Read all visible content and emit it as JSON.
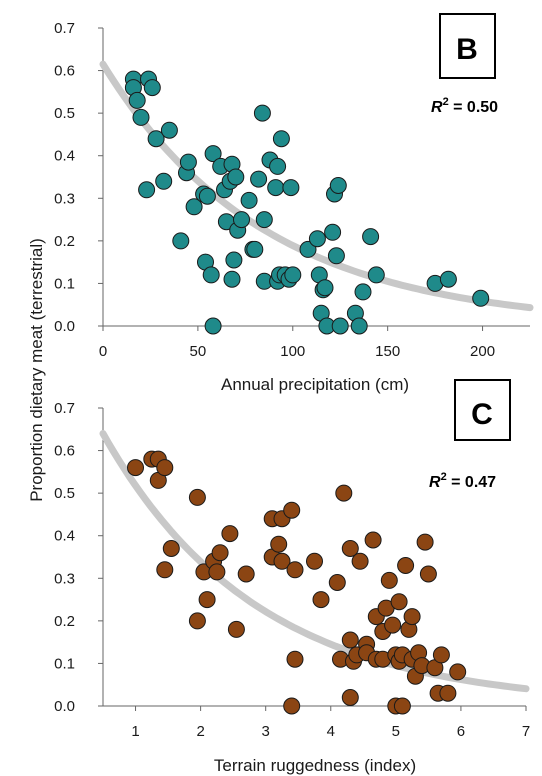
{
  "ylabel": "Proportion dietary meat (terrestrial)",
  "colors": {
    "teal": "#1f8a8a",
    "brown": "#8b4513",
    "fit_line": "#c8c8c8",
    "axis": "#666666"
  },
  "chart_data": [
    {
      "panel": "B",
      "type": "scatter",
      "xlabel": "Annual precipitation (cm)",
      "ylabel": "Proportion dietary meat (terrestrial)",
      "xlim": [
        0,
        225
      ],
      "ylim": [
        0,
        0.7
      ],
      "xticks": [
        "0",
        "50",
        "100",
        "150",
        "200"
      ],
      "yticks": [
        "0.0",
        "0.1",
        "0.2",
        "0.3",
        "0.4",
        "0.5",
        "0.6",
        "0.7"
      ],
      "r2_label": "= 0.50",
      "marker_color": "#1f8a8a",
      "fit": {
        "type": "exponential",
        "a": 0.615,
        "b": 0.0118
      },
      "points": [
        [
          16,
          0.58
        ],
        [
          16,
          0.56
        ],
        [
          18,
          0.53
        ],
        [
          20,
          0.49
        ],
        [
          23,
          0.32
        ],
        [
          24,
          0.58
        ],
        [
          26,
          0.56
        ],
        [
          28,
          0.44
        ],
        [
          32,
          0.34
        ],
        [
          35,
          0.46
        ],
        [
          41,
          0.2
        ],
        [
          44,
          0.36
        ],
        [
          45,
          0.385
        ],
        [
          48,
          0.28
        ],
        [
          53,
          0.31
        ],
        [
          54,
          0.15
        ],
        [
          55,
          0.305
        ],
        [
          57,
          0.12
        ],
        [
          58,
          0.0
        ],
        [
          58,
          0.405
        ],
        [
          62,
          0.375
        ],
        [
          64,
          0.32
        ],
        [
          65,
          0.245
        ],
        [
          67,
          0.34
        ],
        [
          68,
          0.38
        ],
        [
          68,
          0.11
        ],
        [
          69,
          0.155
        ],
        [
          70,
          0.35
        ],
        [
          71,
          0.225
        ],
        [
          73,
          0.25
        ],
        [
          77,
          0.295
        ],
        [
          79,
          0.18
        ],
        [
          80,
          0.18
        ],
        [
          82,
          0.345
        ],
        [
          84,
          0.5
        ],
        [
          85,
          0.25
        ],
        [
          85,
          0.105
        ],
        [
          88,
          0.39
        ],
        [
          91,
          0.325
        ],
        [
          92,
          0.375
        ],
        [
          92,
          0.105
        ],
        [
          93,
          0.12
        ],
        [
          94,
          0.44
        ],
        [
          96,
          0.12
        ],
        [
          98,
          0.11
        ],
        [
          99,
          0.325
        ],
        [
          100,
          0.12
        ],
        [
          108,
          0.18
        ],
        [
          113,
          0.205
        ],
        [
          114,
          0.12
        ],
        [
          115,
          0.03
        ],
        [
          116,
          0.085
        ],
        [
          117,
          0.09
        ],
        [
          118,
          0.0
        ],
        [
          121,
          0.22
        ],
        [
          122,
          0.31
        ],
        [
          123,
          0.165
        ],
        [
          124,
          0.33
        ],
        [
          125,
          0.0
        ],
        [
          133,
          0.03
        ],
        [
          135,
          0.0
        ],
        [
          137,
          0.08
        ],
        [
          141,
          0.21
        ],
        [
          144,
          0.12
        ],
        [
          175,
          0.1
        ],
        [
          182,
          0.11
        ],
        [
          199,
          0.065
        ]
      ]
    },
    {
      "panel": "C",
      "type": "scatter",
      "xlabel": "Terrain ruggedness (index)",
      "ylabel": "Proportion dietary meat (terrestrial)",
      "xlim": [
        0.5,
        7
      ],
      "ylim": [
        0,
        0.7
      ],
      "xticks": [
        "1",
        "2",
        "3",
        "4",
        "5",
        "6",
        "7"
      ],
      "yticks": [
        "0.0",
        "0.1",
        "0.2",
        "0.3",
        "0.4",
        "0.5",
        "0.6",
        "0.7"
      ],
      "r2_label": "= 0.47",
      "marker_color": "#8b4513",
      "fit": {
        "type": "exponential",
        "a": 0.64,
        "b": 0.424
      },
      "points": [
        [
          1.0,
          0.56
        ],
        [
          1.25,
          0.58
        ],
        [
          1.35,
          0.58
        ],
        [
          1.35,
          0.53
        ],
        [
          1.45,
          0.56
        ],
        [
          1.45,
          0.32
        ],
        [
          1.55,
          0.37
        ],
        [
          1.95,
          0.49
        ],
        [
          1.95,
          0.2
        ],
        [
          2.05,
          0.315
        ],
        [
          2.1,
          0.25
        ],
        [
          2.2,
          0.34
        ],
        [
          2.25,
          0.315
        ],
        [
          2.3,
          0.36
        ],
        [
          2.45,
          0.405
        ],
        [
          2.55,
          0.18
        ],
        [
          2.7,
          0.31
        ],
        [
          3.1,
          0.44
        ],
        [
          3.1,
          0.35
        ],
        [
          3.2,
          0.38
        ],
        [
          3.25,
          0.44
        ],
        [
          3.25,
          0.34
        ],
        [
          3.4,
          0.46
        ],
        [
          3.4,
          0.0
        ],
        [
          3.45,
          0.32
        ],
        [
          3.45,
          0.11
        ],
        [
          3.75,
          0.34
        ],
        [
          3.85,
          0.25
        ],
        [
          4.1,
          0.29
        ],
        [
          4.15,
          0.11
        ],
        [
          4.2,
          0.5
        ],
        [
          4.3,
          0.37
        ],
        [
          4.3,
          0.155
        ],
        [
          4.3,
          0.02
        ],
        [
          4.35,
          0.105
        ],
        [
          4.4,
          0.12
        ],
        [
          4.45,
          0.34
        ],
        [
          4.55,
          0.145
        ],
        [
          4.55,
          0.125
        ],
        [
          4.65,
          0.39
        ],
        [
          4.7,
          0.11
        ],
        [
          4.7,
          0.21
        ],
        [
          4.8,
          0.175
        ],
        [
          4.8,
          0.11
        ],
        [
          4.85,
          0.23
        ],
        [
          4.9,
          0.295
        ],
        [
          4.95,
          0.19
        ],
        [
          5.0,
          0.12
        ],
        [
          5.0,
          0.0
        ],
        [
          5.05,
          0.245
        ],
        [
          5.05,
          0.105
        ],
        [
          5.1,
          0.12
        ],
        [
          5.1,
          0.0
        ],
        [
          5.15,
          0.33
        ],
        [
          5.2,
          0.18
        ],
        [
          5.25,
          0.11
        ],
        [
          5.25,
          0.21
        ],
        [
          5.3,
          0.07
        ],
        [
          5.35,
          0.125
        ],
        [
          5.4,
          0.095
        ],
        [
          5.45,
          0.385
        ],
        [
          5.5,
          0.31
        ],
        [
          5.6,
          0.09
        ],
        [
          5.65,
          0.03
        ],
        [
          5.7,
          0.12
        ],
        [
          5.8,
          0.03
        ],
        [
          5.95,
          0.08
        ]
      ]
    }
  ]
}
